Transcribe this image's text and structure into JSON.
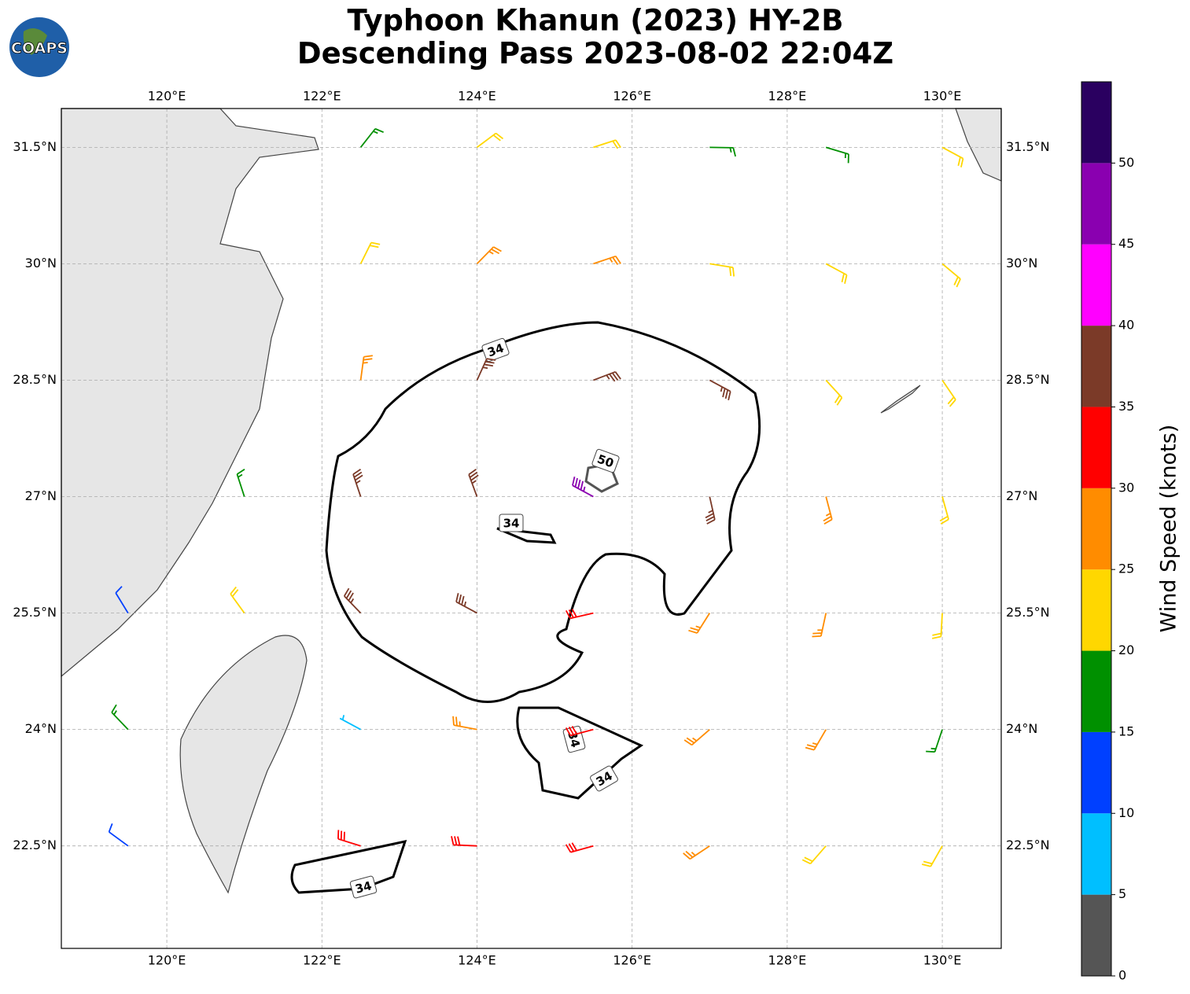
{
  "chart_data": {
    "type": "wind_barb_map",
    "title": "Typhoon Khanun (2023) HY-2B",
    "subtitle": "Descending Pass 2023-08-02 22:04Z",
    "logo": "COAPS",
    "xlim": [
      118.64,
      130.76
    ],
    "ylim": [
      21.18,
      32.0
    ],
    "xticks": [
      {
        "value": 120,
        "label": "120°E"
      },
      {
        "value": 122,
        "label": "122°E"
      },
      {
        "value": 124,
        "label": "124°E"
      },
      {
        "value": 126,
        "label": "126°E"
      },
      {
        "value": 128,
        "label": "128°E"
      },
      {
        "value": 130,
        "label": "130°E"
      }
    ],
    "yticks": [
      {
        "value": 22.5,
        "label": "22.5°N"
      },
      {
        "value": 24,
        "label": "24°N"
      },
      {
        "value": 25.5,
        "label": "25.5°N"
      },
      {
        "value": 27,
        "label": "27°N"
      },
      {
        "value": 28.5,
        "label": "28.5°N"
      },
      {
        "value": 30,
        "label": "30°N"
      },
      {
        "value": 31.5,
        "label": "31.5°N"
      }
    ],
    "grid": true,
    "contour_labels": [
      "34",
      "34",
      "34",
      "34",
      "34",
      "50"
    ],
    "barbs": {
      "lon": [
        122.5,
        124,
        125.5,
        127,
        128.5,
        130,
        122.5,
        124,
        125.5,
        127,
        128.5,
        130,
        122.5,
        124,
        125.5,
        127,
        128.5,
        130,
        121,
        122.5,
        124,
        125.5,
        127,
        128.5,
        130,
        119.5,
        121,
        122.5,
        124,
        125.5,
        127,
        128.5,
        130,
        119.5,
        122.5,
        124,
        125.5,
        127,
        128.5,
        130,
        119.5,
        122.5,
        124,
        125.5,
        127,
        128.5,
        130
      ],
      "lat": [
        31.5,
        31.5,
        31.5,
        31.5,
        31.5,
        31.5,
        30,
        30,
        30,
        30,
        30,
        30,
        28.5,
        28.5,
        28.5,
        28.5,
        28.5,
        28.5,
        27,
        27,
        27,
        27,
        27,
        27,
        27,
        25.5,
        25.5,
        25.5,
        25.5,
        25.5,
        25.5,
        25.5,
        25.5,
        24,
        24,
        24,
        24,
        24,
        24,
        24,
        22.5,
        22.5,
        22.5,
        22.5,
        22.5,
        22.5,
        22.5
      ],
      "speed": [
        17,
        22,
        22,
        18,
        18,
        22,
        23,
        28,
        27,
        24,
        22,
        22,
        27,
        37,
        37,
        37,
        23,
        22,
        17,
        36,
        38,
        48,
        37,
        27,
        23,
        12,
        22,
        36,
        37,
        33,
        28,
        27,
        24,
        16,
        8,
        29,
        34,
        28,
        26,
        18,
        13,
        32,
        33,
        31,
        28,
        24,
        23
      ]
    },
    "colorbar": {
      "label": "Wind Speed (knots)",
      "bins": [
        0,
        5,
        10,
        15,
        20,
        25,
        30,
        35,
        40,
        45,
        50,
        55
      ],
      "colors": [
        "#555555",
        "#00bfff",
        "#0040ff",
        "#009000",
        "#ffd700",
        "#ff8c00",
        "#ff0000",
        "#7b3a28",
        "#ff00ff",
        "#8a00b0",
        "#2a0060"
      ],
      "ticks": [
        0,
        5,
        10,
        15,
        20,
        25,
        30,
        35,
        40,
        45,
        50
      ]
    }
  }
}
